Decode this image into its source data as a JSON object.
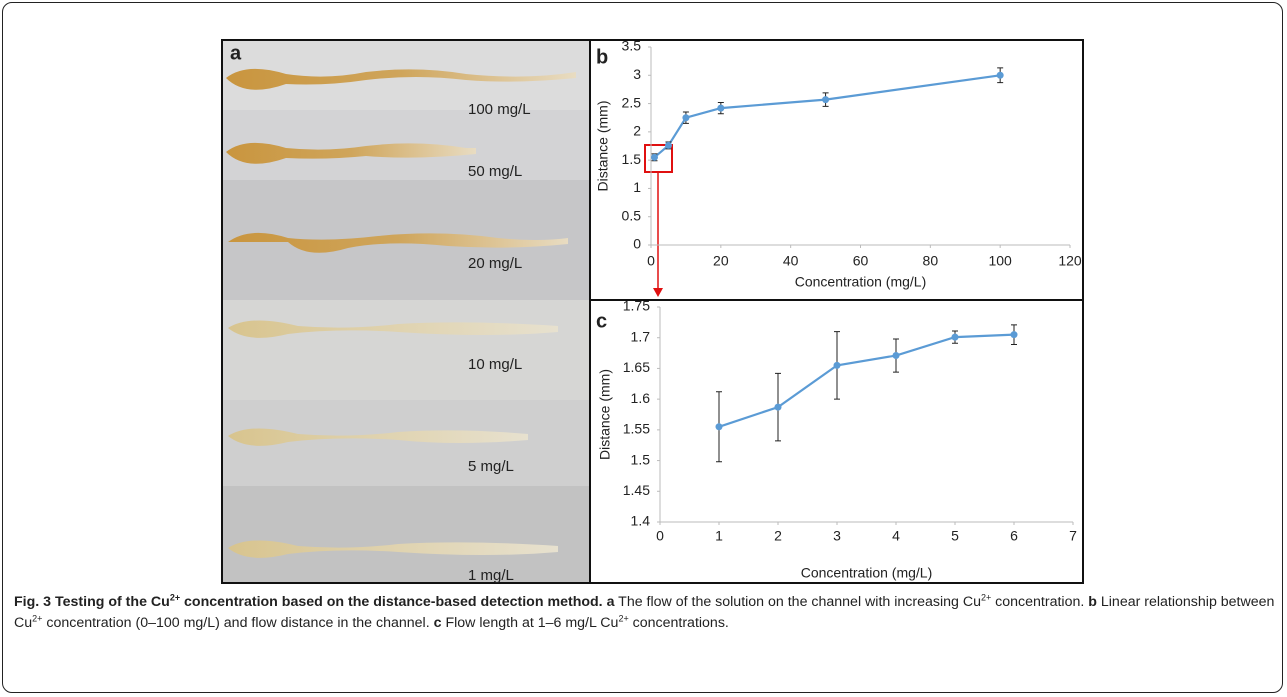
{
  "panel_a": {
    "label": "a",
    "strip_labels": [
      "100 mg/L",
      "50 mg/L",
      "20 mg/L",
      "10 mg/L",
      "5 mg/L",
      "1 mg/L"
    ]
  },
  "chart_data": [
    {
      "type": "line",
      "panel": "b",
      "x": [
        1,
        5,
        10,
        20,
        50,
        100
      ],
      "series": [
        {
          "color": "#5b9bd5",
          "values": [
            1.55,
            1.76,
            2.25,
            2.42,
            2.57,
            3.0
          ],
          "errors": [
            0.06,
            0.06,
            0.1,
            0.1,
            0.12,
            0.13
          ]
        }
      ],
      "xlim": [
        0,
        120
      ],
      "xticks": [
        0,
        20,
        40,
        60,
        80,
        100,
        120
      ],
      "ylim": [
        0,
        3.5
      ],
      "yticks": [
        0,
        0.5,
        1,
        1.5,
        2,
        2.5,
        3,
        3.5
      ],
      "x_label": "Concentration (mg/L)",
      "y_label": "Distance (mm)"
    },
    {
      "type": "line",
      "panel": "c",
      "x": [
        1,
        2,
        3,
        4,
        5,
        6
      ],
      "series": [
        {
          "color": "#5b9bd5",
          "values": [
            1.555,
            1.587,
            1.655,
            1.671,
            1.701,
            1.705
          ],
          "errors": [
            0.057,
            0.055,
            0.055,
            0.027,
            0.01,
            0.016
          ]
        }
      ],
      "xlim": [
        0,
        7
      ],
      "xticks": [
        0,
        1,
        2,
        3,
        4,
        5,
        6,
        7
      ],
      "ylim": [
        1.4,
        1.75
      ],
      "yticks": [
        1.4,
        1.45,
        1.5,
        1.55,
        1.6,
        1.65,
        1.7,
        1.75
      ],
      "x_label": "Concentration (mg/L)",
      "y_label": "Distance (mm)"
    }
  ],
  "caption": {
    "figure": "Fig. 3",
    "title": [
      "Testing of the Cu",
      "2+",
      " concentration based on the distance-based detection method."
    ],
    "parts": [
      {
        "label": "a",
        "text": [
          "The flow of the solution on the channel with increasing Cu",
          "2+",
          " concentration."
        ]
      },
      {
        "label": "b",
        "text": [
          "Linear relationship between Cu",
          "2+",
          " concentration (0–100 mg/L) and flow distance in the channel."
        ]
      },
      {
        "label": "c",
        "text": [
          "Flow length at 1–6 mg/L Cu",
          "2+",
          " concentrations."
        ]
      }
    ]
  }
}
